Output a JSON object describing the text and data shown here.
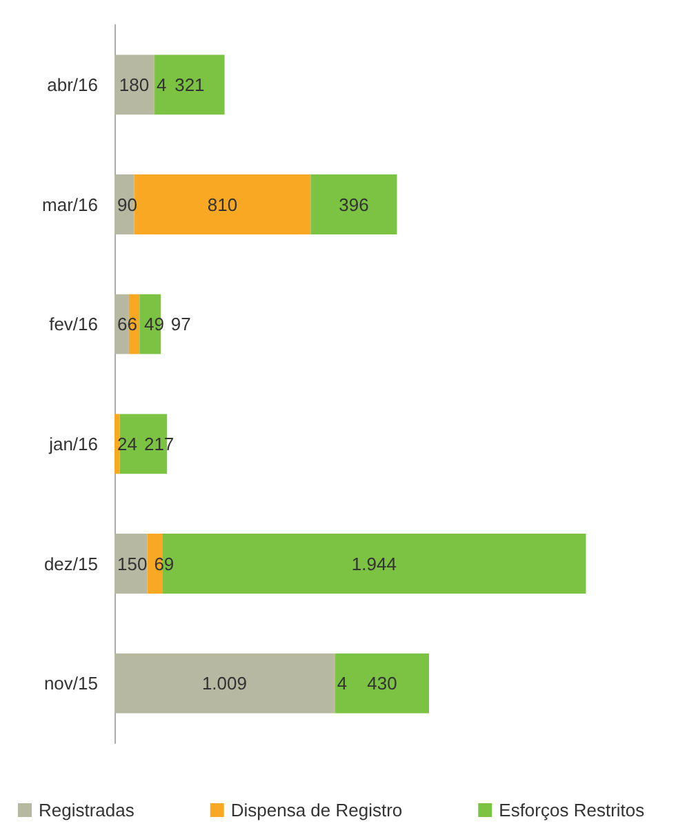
{
  "chart_data": {
    "type": "bar",
    "orientation": "horizontal",
    "stacked": true,
    "legend": "bottom",
    "categories": [
      "abr/16",
      "mar/16",
      "fev/16",
      "jan/16",
      "dez/15",
      "nov/15"
    ],
    "series": [
      {
        "name": "Registradas",
        "color": "#b6b8a1",
        "values": [
          180,
          90,
          66,
          null,
          150,
          1009
        ],
        "value_labels": [
          "180",
          "90",
          "66",
          null,
          "150",
          "1.009"
        ]
      },
      {
        "name": "Dispensa de Registro",
        "color": "#f9a824",
        "values": [
          4,
          810,
          49,
          24,
          69,
          4
        ],
        "value_labels": [
          "4",
          "810",
          "49",
          "24",
          "69",
          "4"
        ]
      },
      {
        "name": "Esforços Restritos",
        "color": "#7cc243",
        "values": [
          321,
          396,
          97,
          217,
          1944,
          430
        ],
        "value_labels": [
          "321",
          "396",
          "97",
          "217",
          "1.944",
          "430"
        ]
      }
    ]
  }
}
